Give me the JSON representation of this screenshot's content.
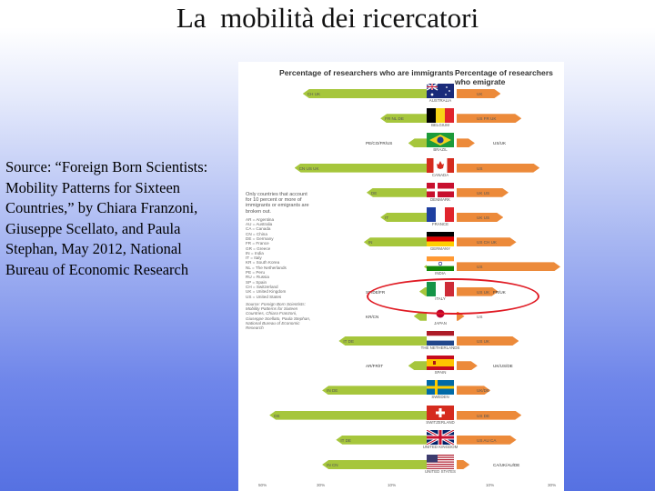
{
  "slide": {
    "title": "La  mobilità dei ricercatori",
    "source": "Source: “Foreign Born Scientists: Mobility Patterns for Sixteen Countries,” by Chiara Franzoni, Giuseppe Scellato, and Paula Stephan, May 2012, National Bureau of Economic Research"
  },
  "figure": {
    "header_left": "Percentage of researchers who are immigrants",
    "header_right": "Percentage of researchers who emigrate",
    "legend": {
      "head": "Only countries that account for 10 percent or more of immigrants or emigrants are broken out.",
      "codes": [
        "AR = Argentina",
        "AU = Australia",
        "CA = Canada",
        "CN = China",
        "DE = Germany",
        "FR = France",
        "GR = Greece",
        "IN = India",
        "IT = Italy",
        "KR = South Korea",
        "NL = The Netherlands",
        "PE = Peru",
        "RU = Russia",
        "SP = Spain",
        "CH = Switzerland",
        "UK = United Kingdom",
        "US = United States"
      ],
      "note": "Source: Foreign Born Scientists: Mobility Patterns for Sixteen Countries, Chiara Franzoni, Giuseppe Scellato, Paula Stephan, National Bureau of Economic Research"
    },
    "axis_ticks": [
      "50%",
      "30%",
      "10%",
      "10%",
      "30%"
    ],
    "rows": [
      {
        "country": "AUSTRALIA",
        "flag": "australia",
        "imm": 45,
        "emi": 17,
        "codes_l": "CH    UK",
        "codes_r": "UK",
        "color_l": "#a6c63c",
        "color_r": "#ec8a3a"
      },
      {
        "country": "BELGIUM",
        "flag": "belgium",
        "imm": 17,
        "emi": 25,
        "codes_l": "FR   NL   DE",
        "codes_r": "US    FR    UK",
        "color_l": "#a6c63c",
        "color_r": "#ec8a3a"
      },
      {
        "country": "BRAZIL",
        "flag": "brazil",
        "imm": 7,
        "emi": 7,
        "codes_l": "",
        "codes_r": "",
        "shares_l": "PE/CO/FR/US",
        "shares_r": "US/UK",
        "color_l": "#a6c63c",
        "color_r": "#ec8a3a"
      },
      {
        "country": "CANADA",
        "flag": "canada",
        "imm": 48,
        "emi": 32,
        "codes_l": "CN    US    UK",
        "codes_r": "US",
        "color_l": "#a6c63c",
        "color_r": "#ec8a3a"
      },
      {
        "country": "DENMARK",
        "flag": "denmark",
        "imm": 22,
        "emi": 20,
        "codes_l": "DE",
        "codes_r": "UK      US",
        "color_l": "#a6c63c",
        "color_r": "#ec8a3a"
      },
      {
        "country": "FRANCE",
        "flag": "france",
        "imm": 17,
        "emi": 18,
        "codes_l": "IT",
        "codes_r": "UK US",
        "color_l": "#a6c63c",
        "color_r": "#ec8a3a"
      },
      {
        "country": "GERMANY",
        "flag": "germany",
        "imm": 23,
        "emi": 23,
        "codes_l": "IN",
        "codes_r": "US     CH      UK",
        "color_l": "#a6c63c",
        "color_r": "#ec8a3a"
      },
      {
        "country": "INDIA",
        "flag": "india",
        "imm": 1,
        "emi": 40,
        "codes_l": "",
        "codes_r": "US",
        "color_l": "#a6c63c",
        "color_r": "#ec8a3a"
      },
      {
        "country": "ITALY",
        "flag": "italy",
        "imm": 3,
        "emi": 16,
        "codes_l": "",
        "codes_r": "US   UK",
        "shares_l": "SP/DE/FR",
        "shares_r": "FR/UK",
        "color_l": "#a6c63c",
        "color_r": "#ec8a3a"
      },
      {
        "country": "JAPAN",
        "flag": "japan",
        "imm": 5,
        "emi": 3,
        "codes_l": "",
        "codes_r": "US",
        "shares_l": "KR/CN",
        "color_l": "#a6c63c",
        "color_r": "#ec8a3a"
      },
      {
        "country": "THE NETHERLANDS",
        "flag": "netherlands",
        "imm": 32,
        "emi": 24,
        "codes_l": "IT     DE",
        "codes_r": "US     UK",
        "color_l": "#a6c63c",
        "color_r": "#ec8a3a"
      },
      {
        "country": "SPAIN",
        "flag": "spain",
        "imm": 7,
        "emi": 8,
        "codes_l": "",
        "codes_r": "",
        "shares_l": "AR/FR/IT",
        "shares_r": "UK/US/DE",
        "color_l": "#a6c63c",
        "color_r": "#ec8a3a"
      },
      {
        "country": "SWEDEN",
        "flag": "sweden",
        "imm": 38,
        "emi": 13,
        "codes_l": "IN    DE",
        "codes_r": "UK/DE",
        "color_l": "#a6c63c",
        "color_r": "#ec8a3a"
      },
      {
        "country": "SWITZERLAND",
        "flag": "switzerland",
        "imm": 57,
        "emi": 25,
        "codes_l": "DE",
        "codes_r": "US       DE",
        "color_l": "#a6c63c",
        "color_r": "#ec8a3a"
      },
      {
        "country": "UNITED KINGDOM",
        "flag": "uk",
        "imm": 33,
        "emi": 23,
        "codes_l": "IT    DE",
        "codes_r": "US     AU       CA",
        "color_l": "#a6c63c",
        "color_r": "#ec8a3a"
      },
      {
        "country": "UNITED STATES",
        "flag": "us",
        "imm": 38,
        "emi": 5,
        "codes_l": "IN    CN",
        "codes_r": "",
        "shares_r": "CA/UK/AU/DE",
        "color_l": "#a6c63c",
        "color_r": "#ec8a3a"
      }
    ]
  }
}
